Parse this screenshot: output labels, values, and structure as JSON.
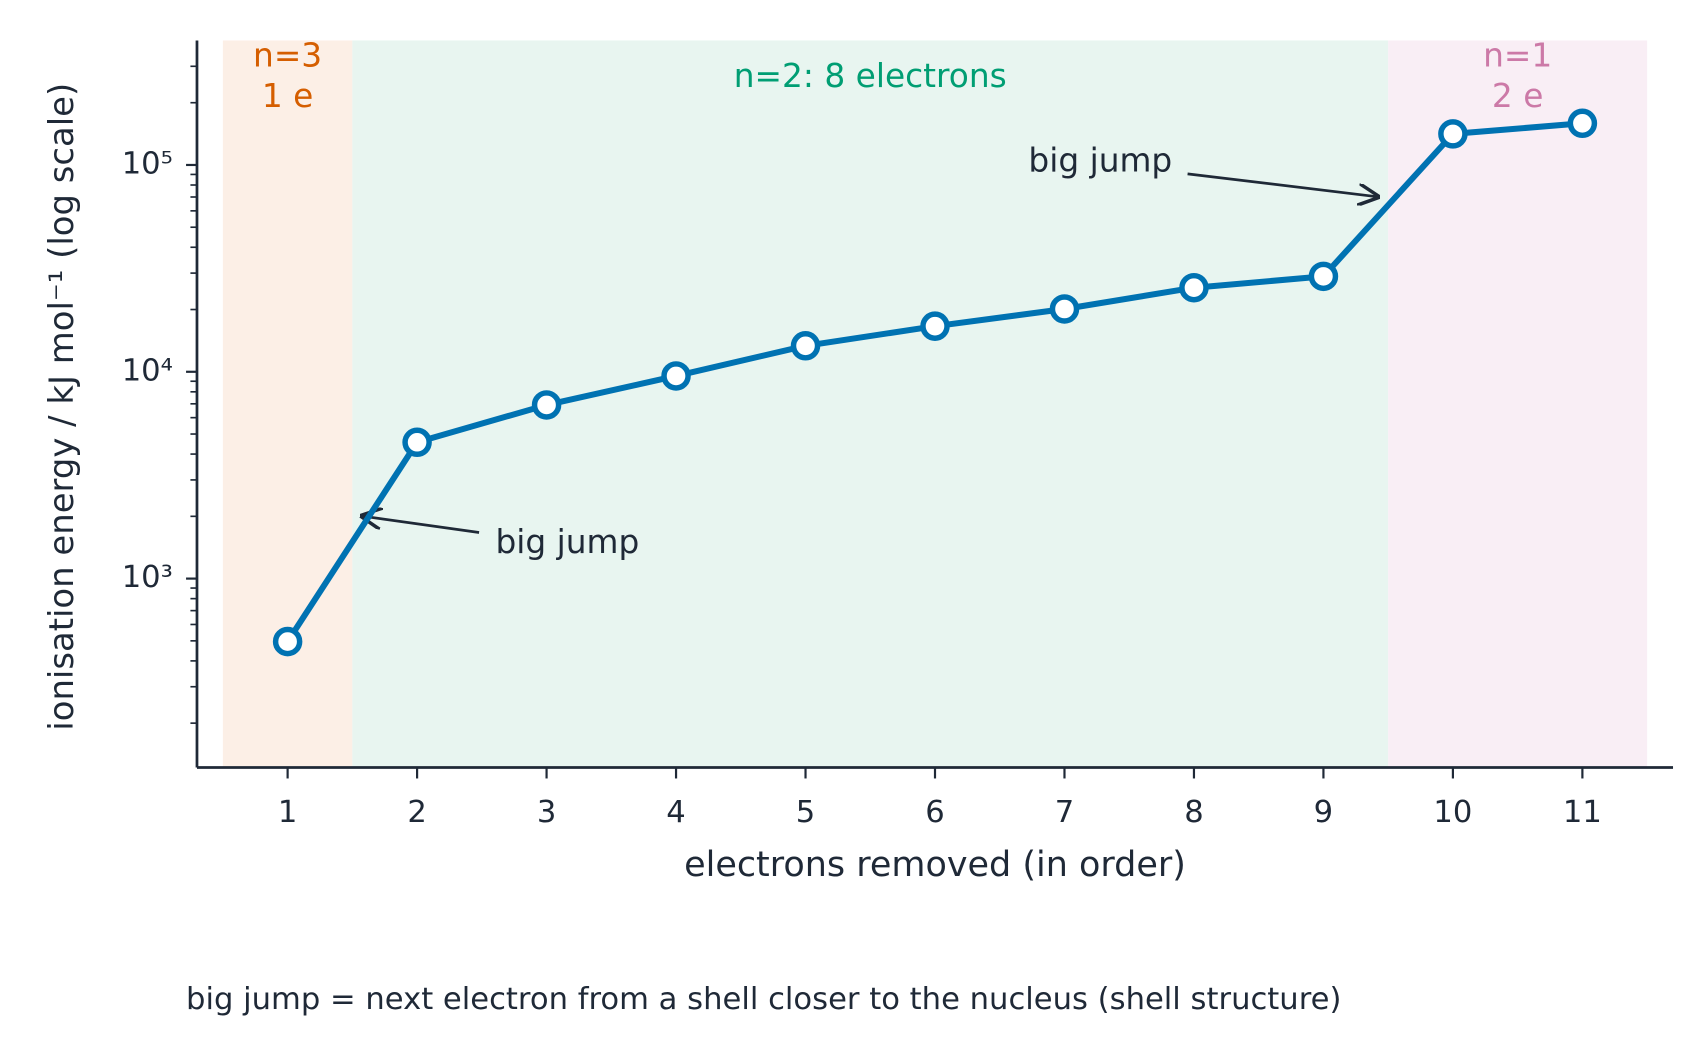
{
  "chart_data": {
    "type": "line",
    "x_label": "electrons removed (in order)",
    "y_label": "ionisation energy / kJ mol⁻¹  (log scale)",
    "caption": "big jump = next electron from a shell closer to the nucleus (shell structure)",
    "x": [
      1,
      2,
      3,
      4,
      5,
      6,
      7,
      8,
      9,
      10,
      11
    ],
    "series": [
      {
        "color": "#0072b2",
        "values": [
          496,
          4562,
          6910,
          9543,
          13354,
          16613,
          20117,
          25496,
          28932,
          141362,
          159075
        ]
      }
    ],
    "xlim": [
      0.3,
      11.7
    ],
    "xticks": [
      1,
      2,
      3,
      4,
      5,
      6,
      7,
      8,
      9,
      10,
      11
    ],
    "ylim": [
      122,
      400000
    ],
    "log_y": true,
    "yticks": [
      {
        "value": 1000,
        "label": "10³"
      },
      {
        "value": 10000,
        "label": "10⁴"
      },
      {
        "value": 100000,
        "label": "10⁵"
      }
    ],
    "yminorticks": [
      200,
      300,
      400,
      500,
      600,
      700,
      800,
      900,
      2000,
      3000,
      4000,
      5000,
      6000,
      7000,
      8000,
      9000,
      20000,
      30000,
      40000,
      50000,
      60000,
      70000,
      80000,
      90000,
      200000,
      300000
    ],
    "shells": [
      {
        "label": [
          "n=3",
          "1 e"
        ],
        "from": 0.5,
        "to": 1.5,
        "color": "#fcefe6",
        "text_color": "#d55e00"
      },
      {
        "label": [
          "n=2: 8 electrons"
        ],
        "from": 1.5,
        "to": 9.5,
        "color": "#e8f5f0",
        "text_color": "#009e73"
      },
      {
        "label": [
          "n=1",
          "2 e"
        ],
        "from": 9.5,
        "to": 11.5,
        "color": "#f9eef5",
        "text_color": "#cc79a7"
      }
    ],
    "annotations": [
      {
        "text": "big jump"
      },
      {
        "text": "big jump"
      }
    ]
  }
}
